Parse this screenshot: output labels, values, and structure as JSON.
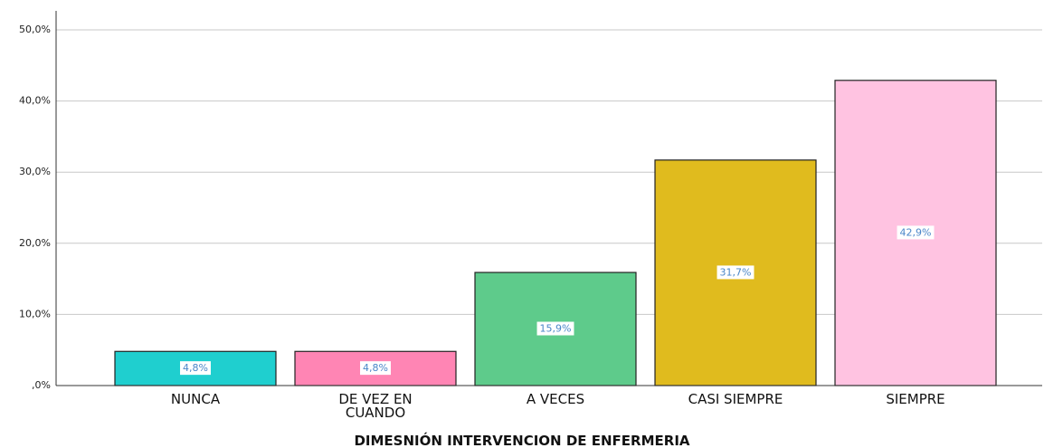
{
  "chart_data": {
    "type": "bar",
    "x_label": "DIMESNIÓN INTERVENCION DE ENFERMERIA",
    "categories": [
      "NUNCA",
      "DE VEZ EN CUANDO",
      "A VECES",
      "CASI SIEMPRE",
      "SIEMPRE"
    ],
    "values": [
      4.8,
      4.8,
      15.9,
      31.7,
      42.9
    ],
    "value_labels": [
      "4,8%",
      "4,8%",
      "15,9%",
      "31,7%",
      "42,9%"
    ],
    "colors": [
      "#1fcfcf",
      "#ff85b4",
      "#5ecb8b",
      "#e0bb1e",
      "#ffc3e1"
    ],
    "ylim": [
      0,
      50
    ],
    "yticks": [
      {
        "value": 0,
        "label": ",0%"
      },
      {
        "value": 10,
        "label": "10,0%"
      },
      {
        "value": 20,
        "label": "20,0%"
      },
      {
        "value": 30,
        "label": "30,0%"
      },
      {
        "value": 40,
        "label": "40,0%"
      },
      {
        "value": 50,
        "label": "50,0%"
      }
    ],
    "grid": true
  }
}
